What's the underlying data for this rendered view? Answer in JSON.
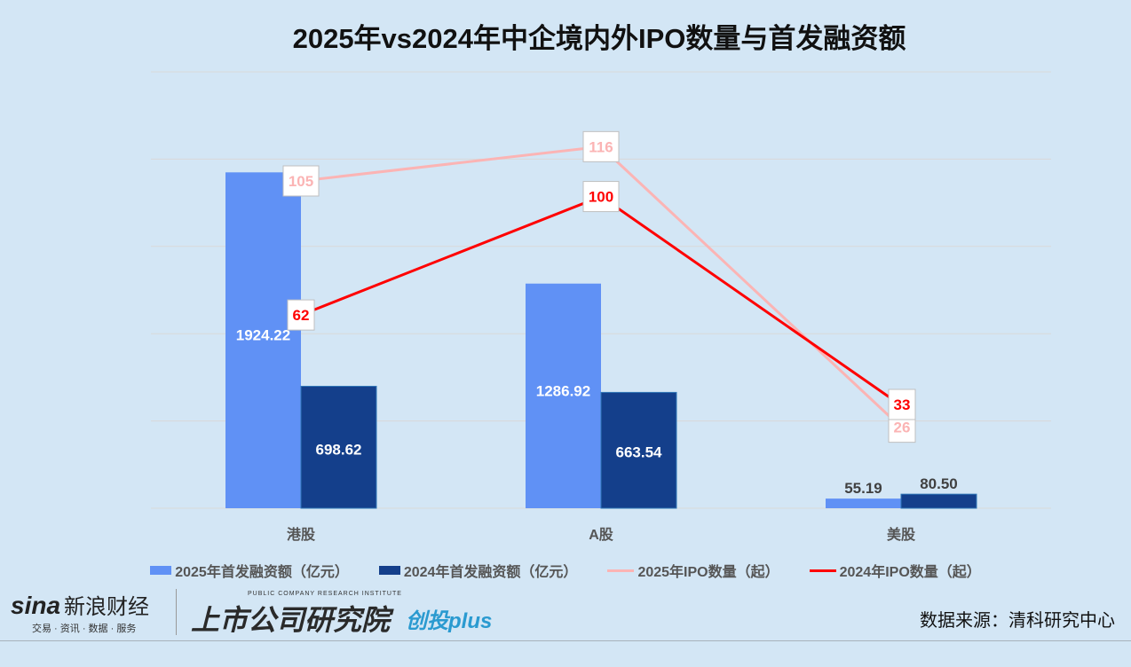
{
  "title": "2025年vs2024年中企境内外IPO数量与首发融资额",
  "chart_data": {
    "type": "bar+line",
    "title": "2025年vs2024年中企境内外IPO数量与首发融资额",
    "categories": [
      "港股",
      "A股",
      "美股"
    ],
    "bar_axis": {
      "ylim": [
        0,
        2500
      ],
      "step": 500,
      "visible": false
    },
    "line_axis": {
      "ylim": [
        0,
        140
      ],
      "visible": false
    },
    "grid": true,
    "legend_position": "bottom",
    "series": [
      {
        "name": "2025年首发融资额（亿元）",
        "kind": "bar",
        "color": "#6091f5",
        "values": [
          1924.22,
          1286.92,
          55.19
        ],
        "labels": [
          "1924.22",
          "1286.92",
          "55.19"
        ]
      },
      {
        "name": "2024年首发融资额（亿元）",
        "kind": "bar",
        "color": "#143f8b",
        "values": [
          698.62,
          663.54,
          80.5
        ],
        "labels": [
          "698.62",
          "663.54",
          "80.50"
        ]
      },
      {
        "name": "2025年IPO数量（起）",
        "kind": "line",
        "color": "#fbb4b4",
        "values": [
          105,
          116,
          26
        ],
        "labels": [
          "105",
          "116",
          "26"
        ]
      },
      {
        "name": "2024年IPO数量（起）",
        "kind": "line",
        "color": "#ff0000",
        "values": [
          62,
          100,
          33
        ],
        "labels": [
          "62",
          "100",
          "33"
        ]
      }
    ]
  },
  "footer": {
    "sina_logo": "sina",
    "sina_name": "新浪财经",
    "sina_tagline": "交易 · 资讯 · 数据 · 服务",
    "institute_en": "PUBLIC COMPANY RESEARCH INSTITUTE",
    "institute_cn": "上市公司研究院",
    "institute_plus": "创投plus",
    "source": "数据来源：清科研究中心"
  }
}
